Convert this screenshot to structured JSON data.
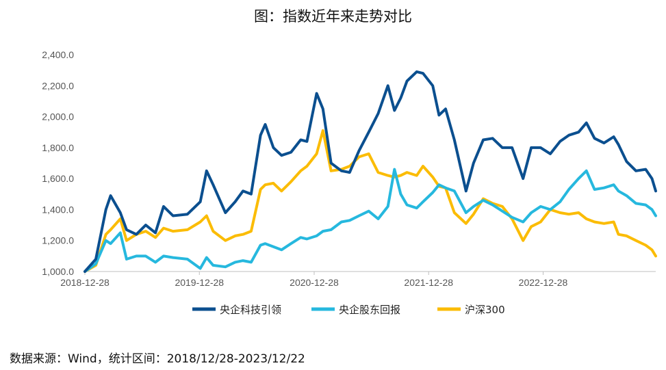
{
  "title": "图：指数近年来走势对比",
  "source": "数据来源：Wind，统计区间：2018/12/28-2023/12/22",
  "colors": {
    "axis": "#bfbfbf",
    "text": "#555555"
  },
  "chart_data": {
    "type": "line",
    "title": "图：指数近年来走势对比",
    "xlabel": "",
    "ylabel": "",
    "x_ticks": [
      "2018-12-28",
      "2019-12-28",
      "2020-12-28",
      "2021-12-28",
      "2022-12-28"
    ],
    "y_ticks": [
      "1,000.0",
      "1,200.0",
      "1,400.0",
      "1,600.0",
      "1,800.0",
      "2,000.0",
      "2,200.0",
      "2,400.0"
    ],
    "x_range": [
      "2018-12-28",
      "2023-12-22"
    ],
    "ylim": [
      1000,
      2400
    ],
    "grid": false,
    "legend_position": "bottom",
    "series": [
      {
        "name": "央企科技引领",
        "color": "#0b4f8f",
        "points": [
          [
            "2018-12-28",
            1000
          ],
          [
            "2019-02-01",
            1080
          ],
          [
            "2019-03-05",
            1400
          ],
          [
            "2019-03-20",
            1490
          ],
          [
            "2019-04-20",
            1380
          ],
          [
            "2019-05-10",
            1270
          ],
          [
            "2019-06-10",
            1240
          ],
          [
            "2019-07-10",
            1300
          ],
          [
            "2019-08-10",
            1250
          ],
          [
            "2019-09-05",
            1420
          ],
          [
            "2019-10-05",
            1360
          ],
          [
            "2019-11-20",
            1370
          ],
          [
            "2019-12-31",
            1450
          ],
          [
            "2020-01-20",
            1650
          ],
          [
            "2020-02-10",
            1560
          ],
          [
            "2020-03-20",
            1380
          ],
          [
            "2020-04-20",
            1450
          ],
          [
            "2020-05-15",
            1520
          ],
          [
            "2020-06-10",
            1500
          ],
          [
            "2020-07-10",
            1880
          ],
          [
            "2020-07-25",
            1950
          ],
          [
            "2020-08-20",
            1800
          ],
          [
            "2020-09-15",
            1750
          ],
          [
            "2020-10-15",
            1770
          ],
          [
            "2020-11-15",
            1850
          ],
          [
            "2020-12-05",
            1840
          ],
          [
            "2021-01-05",
            2150
          ],
          [
            "2021-01-25",
            2050
          ],
          [
            "2021-02-20",
            1700
          ],
          [
            "2021-03-25",
            1650
          ],
          [
            "2021-04-20",
            1640
          ],
          [
            "2021-05-20",
            1780
          ],
          [
            "2021-06-20",
            1900
          ],
          [
            "2021-07-20",
            2020
          ],
          [
            "2021-08-20",
            2200
          ],
          [
            "2021-09-10",
            2040
          ],
          [
            "2021-09-30",
            2120
          ],
          [
            "2021-10-20",
            2230
          ],
          [
            "2021-11-20",
            2290
          ],
          [
            "2021-12-10",
            2280
          ],
          [
            "2022-01-10",
            2200
          ],
          [
            "2022-01-30",
            2010
          ],
          [
            "2022-02-20",
            2050
          ],
          [
            "2022-03-20",
            1850
          ],
          [
            "2022-04-26",
            1520
          ],
          [
            "2022-05-20",
            1700
          ],
          [
            "2022-06-20",
            1850
          ],
          [
            "2022-07-20",
            1860
          ],
          [
            "2022-08-20",
            1800
          ],
          [
            "2022-09-20",
            1800
          ],
          [
            "2022-10-25",
            1600
          ],
          [
            "2022-11-20",
            1800
          ],
          [
            "2022-12-20",
            1800
          ],
          [
            "2023-01-20",
            1760
          ],
          [
            "2023-02-20",
            1840
          ],
          [
            "2023-03-20",
            1880
          ],
          [
            "2023-04-20",
            1900
          ],
          [
            "2023-05-15",
            1960
          ],
          [
            "2023-06-10",
            1860
          ],
          [
            "2023-07-10",
            1830
          ],
          [
            "2023-08-10",
            1870
          ],
          [
            "2023-08-25",
            1820
          ],
          [
            "2023-09-20",
            1710
          ],
          [
            "2023-10-20",
            1650
          ],
          [
            "2023-11-20",
            1660
          ],
          [
            "2023-12-10",
            1600
          ],
          [
            "2023-12-22",
            1520
          ]
        ]
      },
      {
        "name": "央企股东回报",
        "color": "#26b8de",
        "points": [
          [
            "2018-12-28",
            1000
          ],
          [
            "2019-02-01",
            1050
          ],
          [
            "2019-03-05",
            1200
          ],
          [
            "2019-03-20",
            1180
          ],
          [
            "2019-04-20",
            1250
          ],
          [
            "2019-05-10",
            1080
          ],
          [
            "2019-06-10",
            1100
          ],
          [
            "2019-07-10",
            1100
          ],
          [
            "2019-08-10",
            1060
          ],
          [
            "2019-09-05",
            1100
          ],
          [
            "2019-10-05",
            1090
          ],
          [
            "2019-11-20",
            1080
          ],
          [
            "2019-12-31",
            1020
          ],
          [
            "2020-01-20",
            1090
          ],
          [
            "2020-02-10",
            1040
          ],
          [
            "2020-03-20",
            1030
          ],
          [
            "2020-04-20",
            1060
          ],
          [
            "2020-05-15",
            1070
          ],
          [
            "2020-06-10",
            1060
          ],
          [
            "2020-07-10",
            1170
          ],
          [
            "2020-07-25",
            1180
          ],
          [
            "2020-08-20",
            1160
          ],
          [
            "2020-09-15",
            1140
          ],
          [
            "2020-10-15",
            1180
          ],
          [
            "2020-11-15",
            1220
          ],
          [
            "2020-12-05",
            1210
          ],
          [
            "2021-01-05",
            1230
          ],
          [
            "2021-01-25",
            1260
          ],
          [
            "2021-02-20",
            1270
          ],
          [
            "2021-03-25",
            1320
          ],
          [
            "2021-04-20",
            1330
          ],
          [
            "2021-05-20",
            1360
          ],
          [
            "2021-06-20",
            1390
          ],
          [
            "2021-07-20",
            1340
          ],
          [
            "2021-08-20",
            1420
          ],
          [
            "2021-09-10",
            1660
          ],
          [
            "2021-09-30",
            1500
          ],
          [
            "2021-10-20",
            1430
          ],
          [
            "2021-11-20",
            1410
          ],
          [
            "2021-12-10",
            1450
          ],
          [
            "2022-01-10",
            1510
          ],
          [
            "2022-01-30",
            1560
          ],
          [
            "2022-02-20",
            1540
          ],
          [
            "2022-03-20",
            1520
          ],
          [
            "2022-04-26",
            1380
          ],
          [
            "2022-05-20",
            1420
          ],
          [
            "2022-06-20",
            1460
          ],
          [
            "2022-07-20",
            1430
          ],
          [
            "2022-08-20",
            1390
          ],
          [
            "2022-09-20",
            1350
          ],
          [
            "2022-10-25",
            1320
          ],
          [
            "2022-11-20",
            1380
          ],
          [
            "2022-12-20",
            1420
          ],
          [
            "2023-01-20",
            1400
          ],
          [
            "2023-02-20",
            1450
          ],
          [
            "2023-03-20",
            1530
          ],
          [
            "2023-04-20",
            1600
          ],
          [
            "2023-05-15",
            1650
          ],
          [
            "2023-06-10",
            1530
          ],
          [
            "2023-07-10",
            1540
          ],
          [
            "2023-08-10",
            1560
          ],
          [
            "2023-08-25",
            1520
          ],
          [
            "2023-09-20",
            1490
          ],
          [
            "2023-10-20",
            1440
          ],
          [
            "2023-11-20",
            1430
          ],
          [
            "2023-12-10",
            1400
          ],
          [
            "2023-12-22",
            1360
          ]
        ]
      },
      {
        "name": "沪深300",
        "color": "#fbbc05",
        "points": [
          [
            "2018-12-28",
            1000
          ],
          [
            "2019-02-01",
            1040
          ],
          [
            "2019-03-05",
            1240
          ],
          [
            "2019-03-20",
            1270
          ],
          [
            "2019-04-20",
            1340
          ],
          [
            "2019-05-10",
            1200
          ],
          [
            "2019-06-10",
            1240
          ],
          [
            "2019-07-10",
            1260
          ],
          [
            "2019-08-10",
            1220
          ],
          [
            "2019-09-05",
            1280
          ],
          [
            "2019-10-05",
            1260
          ],
          [
            "2019-11-20",
            1270
          ],
          [
            "2019-12-31",
            1320
          ],
          [
            "2020-01-20",
            1360
          ],
          [
            "2020-02-10",
            1260
          ],
          [
            "2020-03-20",
            1200
          ],
          [
            "2020-04-20",
            1230
          ],
          [
            "2020-05-15",
            1240
          ],
          [
            "2020-06-10",
            1260
          ],
          [
            "2020-07-10",
            1530
          ],
          [
            "2020-07-25",
            1560
          ],
          [
            "2020-08-20",
            1570
          ],
          [
            "2020-09-15",
            1520
          ],
          [
            "2020-10-15",
            1580
          ],
          [
            "2020-11-15",
            1650
          ],
          [
            "2020-12-05",
            1680
          ],
          [
            "2021-01-05",
            1760
          ],
          [
            "2021-01-25",
            1910
          ],
          [
            "2021-02-20",
            1650
          ],
          [
            "2021-03-25",
            1660
          ],
          [
            "2021-04-20",
            1680
          ],
          [
            "2021-05-20",
            1740
          ],
          [
            "2021-06-20",
            1760
          ],
          [
            "2021-07-20",
            1640
          ],
          [
            "2021-08-20",
            1620
          ],
          [
            "2021-09-10",
            1610
          ],
          [
            "2021-09-30",
            1620
          ],
          [
            "2021-10-20",
            1640
          ],
          [
            "2021-11-20",
            1620
          ],
          [
            "2021-12-10",
            1680
          ],
          [
            "2022-01-10",
            1610
          ],
          [
            "2022-01-30",
            1550
          ],
          [
            "2022-02-20",
            1540
          ],
          [
            "2022-03-20",
            1380
          ],
          [
            "2022-04-26",
            1310
          ],
          [
            "2022-05-20",
            1370
          ],
          [
            "2022-06-20",
            1470
          ],
          [
            "2022-07-20",
            1440
          ],
          [
            "2022-08-20",
            1420
          ],
          [
            "2022-09-20",
            1340
          ],
          [
            "2022-10-25",
            1200
          ],
          [
            "2022-11-20",
            1290
          ],
          [
            "2022-12-20",
            1320
          ],
          [
            "2023-01-20",
            1400
          ],
          [
            "2023-02-20",
            1380
          ],
          [
            "2023-03-20",
            1370
          ],
          [
            "2023-04-20",
            1380
          ],
          [
            "2023-05-15",
            1340
          ],
          [
            "2023-06-10",
            1320
          ],
          [
            "2023-07-10",
            1310
          ],
          [
            "2023-08-10",
            1320
          ],
          [
            "2023-08-25",
            1240
          ],
          [
            "2023-09-20",
            1230
          ],
          [
            "2023-10-20",
            1200
          ],
          [
            "2023-11-20",
            1170
          ],
          [
            "2023-12-10",
            1140
          ],
          [
            "2023-12-22",
            1100
          ]
        ]
      }
    ]
  }
}
